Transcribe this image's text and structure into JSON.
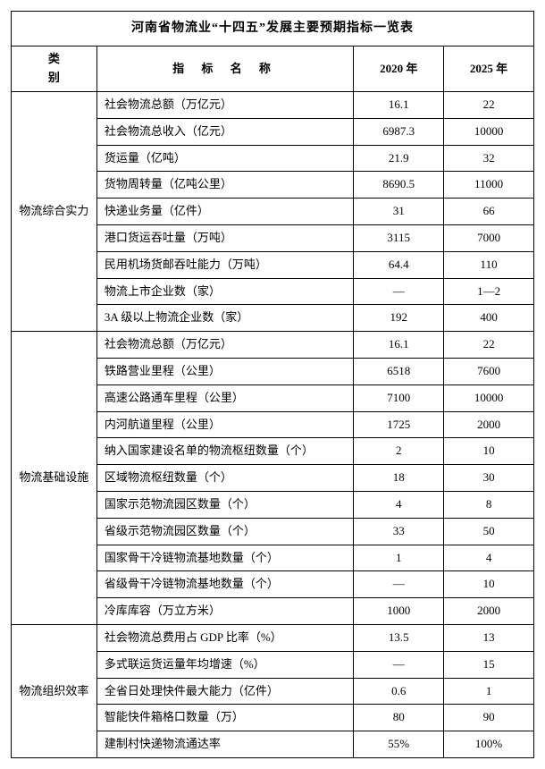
{
  "title": "河南省物流业“十四五”发展主要预期指标一览表",
  "headers": {
    "category": "类别",
    "indicator": "指 标 名 称",
    "year1": "2020 年",
    "year2": "2025 年"
  },
  "sections": [
    {
      "category": "物流综合实力",
      "rows": [
        {
          "indicator": "社会物流总额（万亿元）",
          "y1": "16.1",
          "y2": "22"
        },
        {
          "indicator": "社会物流总收入（亿元）",
          "y1": "6987.3",
          "y2": "10000"
        },
        {
          "indicator": "货运量（亿吨）",
          "y1": "21.9",
          "y2": "32"
        },
        {
          "indicator": "货物周转量（亿吨公里）",
          "y1": "8690.5",
          "y2": "11000"
        },
        {
          "indicator": "快递业务量（亿件）",
          "y1": "31",
          "y2": "66"
        },
        {
          "indicator": "港口货运吞吐量（万吨）",
          "y1": "3115",
          "y2": "7000"
        },
        {
          "indicator": "民用机场货邮吞吐能力（万吨）",
          "y1": "64.4",
          "y2": "110"
        },
        {
          "indicator": "物流上市企业数（家）",
          "y1": "—",
          "y2": "1—2"
        },
        {
          "indicator": "3A 级以上物流企业数（家）",
          "y1": "192",
          "y2": "400"
        }
      ]
    },
    {
      "category": "物流基础设施",
      "rows": [
        {
          "indicator": "社会物流总额（万亿元）",
          "y1": "16.1",
          "y2": "22"
        },
        {
          "indicator": "铁路营业里程（公里）",
          "y1": "6518",
          "y2": "7600"
        },
        {
          "indicator": "高速公路通车里程（公里）",
          "y1": "7100",
          "y2": "10000"
        },
        {
          "indicator": "内河航道里程（公里）",
          "y1": "1725",
          "y2": "2000"
        },
        {
          "indicator": "纳入国家建设名单的物流枢纽数量（个）",
          "y1": "2",
          "y2": "10"
        },
        {
          "indicator": "区域物流枢纽数量（个）",
          "y1": "18",
          "y2": "30"
        },
        {
          "indicator": "国家示范物流园区数量（个）",
          "y1": "4",
          "y2": "8"
        },
        {
          "indicator": "省级示范物流园区数量（个）",
          "y1": "33",
          "y2": "50"
        },
        {
          "indicator": "国家骨干冷链物流基地数量（个）",
          "y1": "1",
          "y2": "4"
        },
        {
          "indicator": "省级骨干冷链物流基地数量（个）",
          "y1": "—",
          "y2": "10"
        },
        {
          "indicator": "冷库库容（万立方米）",
          "y1": "1000",
          "y2": "2000"
        }
      ]
    },
    {
      "category": "物流组织效率",
      "rows": [
        {
          "indicator": "社会物流总费用占 GDP 比率（%）",
          "y1": "13.5",
          "y2": "13"
        },
        {
          "indicator": "多式联运货运量年均增速（%）",
          "y1": "—",
          "y2": "15"
        },
        {
          "indicator": "全省日处理快件最大能力（亿件）",
          "y1": "0.6",
          "y2": "1"
        },
        {
          "indicator": "智能快件箱格口数量（万）",
          "y1": "80",
          "y2": "90"
        },
        {
          "indicator": "建制村快递物流通达率",
          "y1": "55%",
          "y2": "100%"
        }
      ]
    }
  ],
  "styling": {
    "border_color": "#000000",
    "background_color": "#ffffff",
    "font_family": "SimSun",
    "title_fontsize": 14,
    "cell_fontsize": 13
  }
}
